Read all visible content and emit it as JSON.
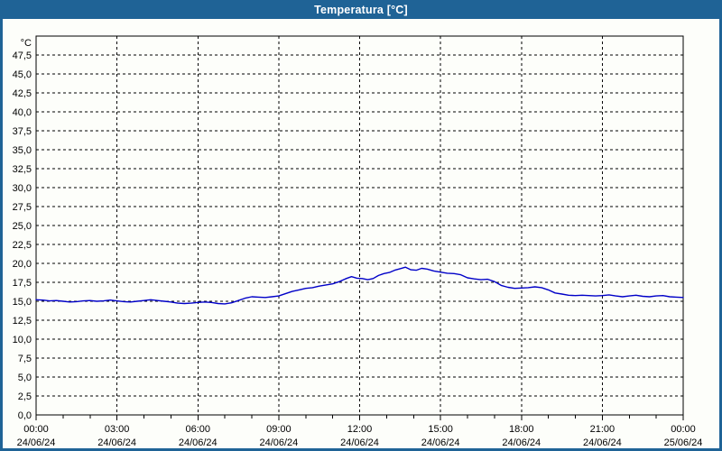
{
  "window": {
    "title": "Temperatura [°C]"
  },
  "colors": {
    "frame": "#1f6396",
    "titlebar_text": "#ffffff",
    "plot_background": "#fdfefa",
    "plot_border": "#000000",
    "gridline": "#000000",
    "tick_text": "#000000",
    "series_line": "#0000c8"
  },
  "chart_data": {
    "type": "line",
    "title": "Temperatura [°C]",
    "y_unit_label": "°C",
    "ylim": [
      0,
      50
    ],
    "ytick_step": 2.5,
    "ytick_labels": [
      "0,0",
      "2,5",
      "5,0",
      "7,5",
      "10,0",
      "12,5",
      "15,0",
      "17,5",
      "20,0",
      "22,5",
      "25,0",
      "27,5",
      "30,0",
      "32,5",
      "35,0",
      "37,5",
      "40,0",
      "42,5",
      "45,0",
      "47,5"
    ],
    "xlim_hours": [
      0,
      24
    ],
    "xtick_step_hours": 3,
    "x_minor_tick_step_hours": 1,
    "grid": "dashed",
    "legend": "none",
    "xticks": [
      {
        "time": "00:00",
        "date": "24/06/24"
      },
      {
        "time": "03:00",
        "date": "24/06/24"
      },
      {
        "time": "06:00",
        "date": "24/06/24"
      },
      {
        "time": "09:00",
        "date": "24/06/24"
      },
      {
        "time": "12:00",
        "date": "24/06/24"
      },
      {
        "time": "15:00",
        "date": "24/06/24"
      },
      {
        "time": "18:00",
        "date": "24/06/24"
      },
      {
        "time": "21:00",
        "date": "24/06/24"
      },
      {
        "time": "00:00",
        "date": "25/06/24"
      }
    ],
    "series": [
      {
        "name": "Temperatura",
        "unit": "°C",
        "points": [
          [
            0.0,
            15.2
          ],
          [
            0.25,
            15.15
          ],
          [
            0.5,
            15.05
          ],
          [
            0.75,
            15.1
          ],
          [
            1.0,
            15.0
          ],
          [
            1.25,
            14.9
          ],
          [
            1.5,
            14.95
          ],
          [
            1.75,
            15.05
          ],
          [
            2.0,
            15.1
          ],
          [
            2.25,
            15.0
          ],
          [
            2.5,
            15.05
          ],
          [
            2.75,
            15.15
          ],
          [
            3.0,
            15.05
          ],
          [
            3.25,
            14.95
          ],
          [
            3.5,
            14.9
          ],
          [
            3.75,
            15.0
          ],
          [
            4.0,
            15.1
          ],
          [
            4.25,
            15.2
          ],
          [
            4.5,
            15.1
          ],
          [
            4.75,
            15.0
          ],
          [
            5.0,
            14.9
          ],
          [
            5.25,
            14.75
          ],
          [
            5.5,
            14.7
          ],
          [
            5.75,
            14.75
          ],
          [
            6.0,
            14.85
          ],
          [
            6.25,
            14.9
          ],
          [
            6.5,
            14.85
          ],
          [
            6.75,
            14.7
          ],
          [
            7.0,
            14.65
          ],
          [
            7.25,
            14.8
          ],
          [
            7.5,
            15.1
          ],
          [
            7.75,
            15.4
          ],
          [
            8.0,
            15.6
          ],
          [
            8.25,
            15.55
          ],
          [
            8.5,
            15.5
          ],
          [
            8.75,
            15.6
          ],
          [
            9.0,
            15.7
          ],
          [
            9.25,
            16.0
          ],
          [
            9.5,
            16.3
          ],
          [
            9.75,
            16.5
          ],
          [
            10.0,
            16.7
          ],
          [
            10.25,
            16.8
          ],
          [
            10.5,
            17.0
          ],
          [
            10.75,
            17.15
          ],
          [
            11.0,
            17.3
          ],
          [
            11.25,
            17.6
          ],
          [
            11.5,
            18.0
          ],
          [
            11.7,
            18.25
          ],
          [
            11.9,
            18.05
          ],
          [
            12.1,
            18.0
          ],
          [
            12.3,
            17.85
          ],
          [
            12.5,
            18.0
          ],
          [
            12.7,
            18.4
          ],
          [
            12.9,
            18.65
          ],
          [
            13.1,
            18.8
          ],
          [
            13.3,
            19.1
          ],
          [
            13.5,
            19.3
          ],
          [
            13.7,
            19.5
          ],
          [
            13.9,
            19.15
          ],
          [
            14.1,
            19.1
          ],
          [
            14.3,
            19.35
          ],
          [
            14.5,
            19.25
          ],
          [
            14.75,
            19.0
          ],
          [
            15.0,
            18.85
          ],
          [
            15.25,
            18.7
          ],
          [
            15.5,
            18.65
          ],
          [
            15.75,
            18.5
          ],
          [
            16.0,
            18.1
          ],
          [
            16.25,
            17.95
          ],
          [
            16.5,
            17.85
          ],
          [
            16.75,
            17.9
          ],
          [
            17.0,
            17.6
          ],
          [
            17.25,
            17.1
          ],
          [
            17.5,
            16.85
          ],
          [
            17.75,
            16.7
          ],
          [
            18.0,
            16.75
          ],
          [
            18.25,
            16.8
          ],
          [
            18.5,
            16.9
          ],
          [
            18.75,
            16.8
          ],
          [
            19.0,
            16.5
          ],
          [
            19.25,
            16.1
          ],
          [
            19.5,
            15.95
          ],
          [
            19.75,
            15.8
          ],
          [
            20.0,
            15.75
          ],
          [
            20.25,
            15.8
          ],
          [
            20.5,
            15.75
          ],
          [
            20.75,
            15.7
          ],
          [
            21.0,
            15.75
          ],
          [
            21.25,
            15.85
          ],
          [
            21.5,
            15.7
          ],
          [
            21.75,
            15.6
          ],
          [
            22.0,
            15.7
          ],
          [
            22.25,
            15.8
          ],
          [
            22.5,
            15.65
          ],
          [
            22.75,
            15.6
          ],
          [
            23.0,
            15.7
          ],
          [
            23.25,
            15.75
          ],
          [
            23.5,
            15.6
          ],
          [
            23.75,
            15.55
          ],
          [
            24.0,
            15.5
          ]
        ]
      }
    ]
  }
}
